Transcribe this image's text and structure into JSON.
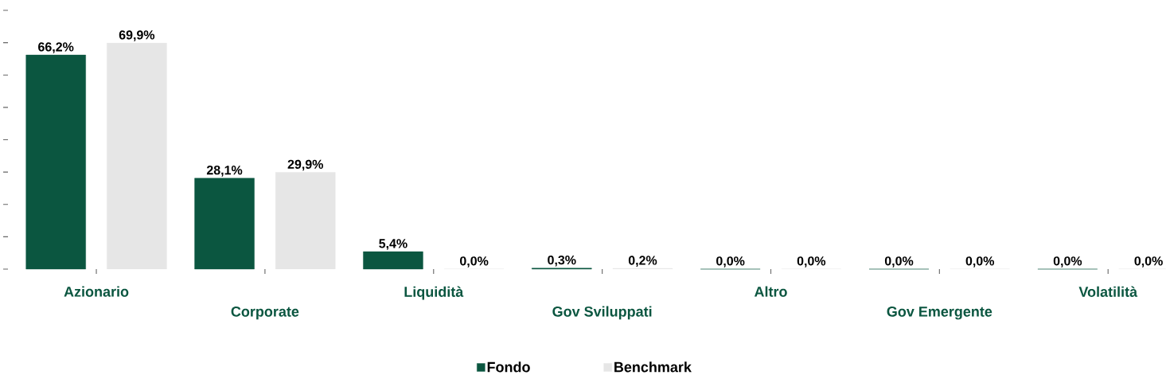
{
  "chart_data": {
    "type": "bar",
    "categories": [
      "Azionario",
      "Corporate",
      "Liquidità",
      "Gov Sviluppati",
      "Altro",
      "Gov Emergente",
      "Volatilità"
    ],
    "series": [
      {
        "name": "Fondo",
        "color": "#0b5640",
        "values": [
          66.2,
          28.1,
          5.4,
          0.3,
          0.0,
          0.0,
          0.0
        ],
        "value_labels": [
          "66,2%",
          "28,1%",
          "5,4%",
          "0,3%",
          "0,0%",
          "0,0%",
          "0,0%"
        ]
      },
      {
        "name": "Benchmark",
        "color": "#e6e6e6",
        "values": [
          69.9,
          29.9,
          0.0,
          0.2,
          0.0,
          0.0,
          0.0
        ],
        "value_labels": [
          "69,9%",
          "29,9%",
          "0,0%",
          "0,2%",
          "0,0%",
          "0,0%",
          "0,0%"
        ]
      }
    ],
    "yticks": [
      {
        "value": 0,
        "label": null
      },
      {
        "value": 10,
        "label": null
      },
      {
        "value": 20,
        "label": null
      },
      {
        "value": 30,
        "label": null
      },
      {
        "value": 40,
        "label": null
      },
      {
        "value": 50,
        "label": null
      },
      {
        "value": 60,
        "label": null
      },
      {
        "value": 70,
        "label": null
      },
      {
        "value": 80,
        "label": null
      }
    ],
    "tick_labels": "x",
    "legend": "bottom"
  }
}
